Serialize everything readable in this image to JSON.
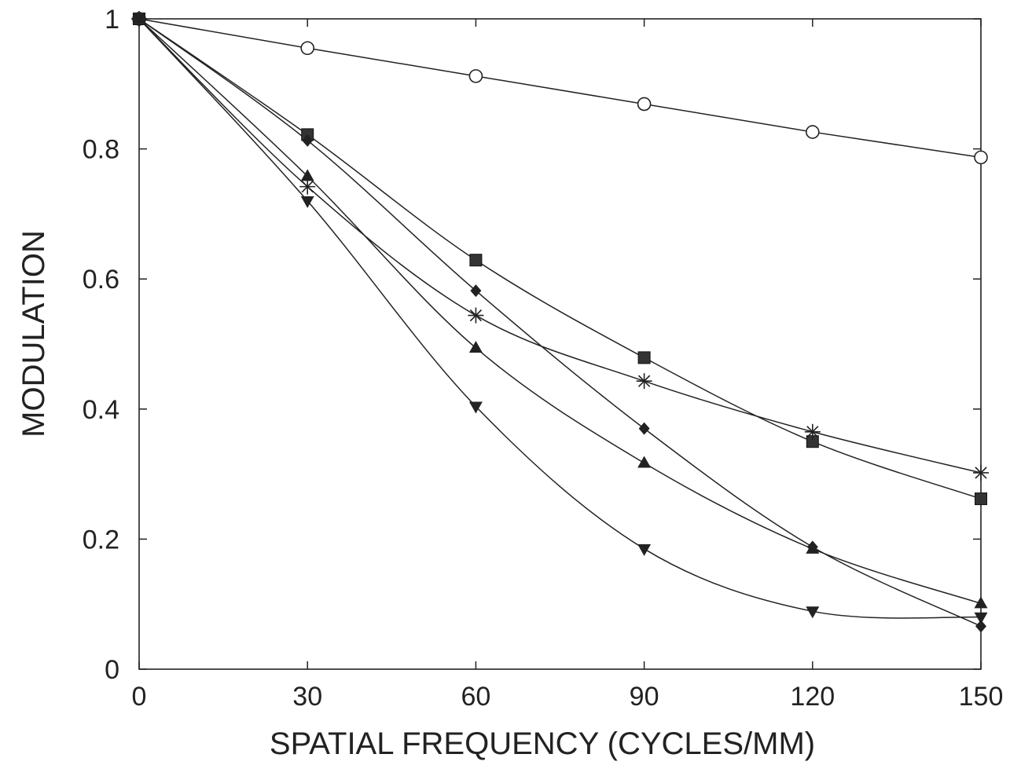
{
  "chart_data": {
    "type": "line",
    "title": "",
    "xlabel": "SPATIAL FREQUENCY (CYCLES/MM)",
    "ylabel": "MODULATION",
    "xlim": [
      0,
      150
    ],
    "ylim": [
      0,
      1
    ],
    "xticks": [
      0,
      30,
      60,
      90,
      120,
      150
    ],
    "xtick_labels": [
      "0",
      "30",
      "60",
      "90",
      "120",
      "150"
    ],
    "yticks": [
      0,
      0.2,
      0.4,
      0.6,
      0.8,
      1
    ],
    "ytick_labels": [
      "0",
      "0.2",
      "0.4",
      "0.6",
      "0.8",
      "1"
    ],
    "grid": false,
    "legend": "none",
    "x": [
      0,
      30,
      60,
      90,
      120,
      150
    ],
    "series": [
      {
        "marker": "open-circle",
        "values": [
          1.0,
          0.955,
          0.912,
          0.869,
          0.826,
          0.787
        ]
      },
      {
        "marker": "filled-square",
        "values": [
          1.0,
          0.822,
          0.629,
          0.479,
          0.35,
          0.262
        ]
      },
      {
        "marker": "asterisk",
        "values": [
          1.0,
          0.742,
          0.544,
          0.443,
          0.365,
          0.302
        ]
      },
      {
        "marker": "filled-diamond",
        "values": [
          1.0,
          0.813,
          0.582,
          0.37,
          0.188,
          0.066
        ]
      },
      {
        "marker": "triangle-up",
        "values": [
          1.0,
          0.758,
          0.494,
          0.317,
          0.185,
          0.101
        ]
      },
      {
        "marker": "triangle-down",
        "values": [
          1.0,
          0.72,
          0.404,
          0.185,
          0.089,
          0.08
        ]
      }
    ]
  }
}
